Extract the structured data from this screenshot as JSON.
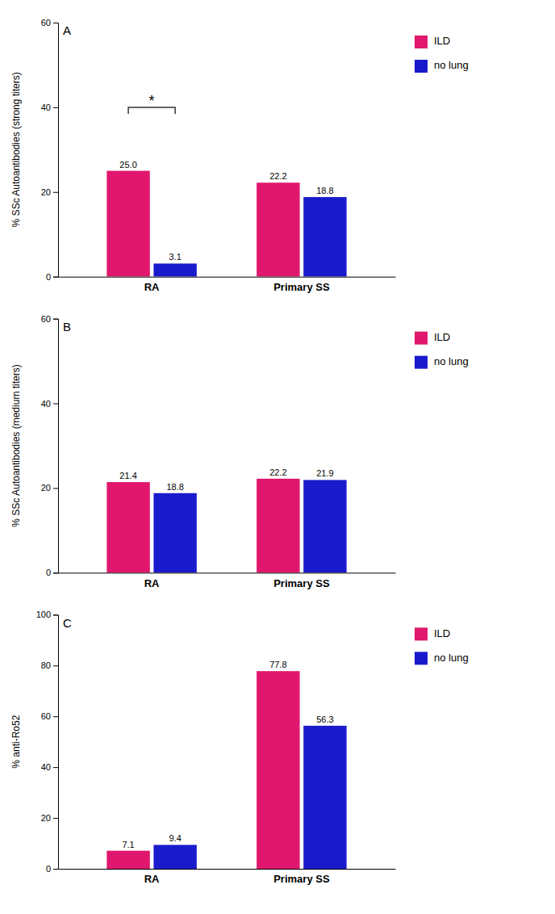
{
  "chart_data": [
    {
      "type": "bar",
      "title": "A",
      "ylabel": "% SSc Autoantibodies (strong titers)",
      "categories": [
        "RA",
        "Primary SS"
      ],
      "series": [
        {
          "name": "ILD",
          "color": "#E0176C",
          "values": [
            25.0,
            22.2
          ],
          "value_labels": [
            "25.0",
            "22.2"
          ]
        },
        {
          "name": "no lung",
          "color": "#1A1ACD",
          "values": [
            3.1,
            18.8
          ],
          "value_labels": [
            "3.1",
            "18.8"
          ]
        }
      ],
      "ylim": [
        0,
        60
      ],
      "yticks": [
        0,
        20,
        40,
        60
      ],
      "data_labels": true,
      "grid": false,
      "legend": "right",
      "annotations": [
        {
          "text": "*",
          "category": "RA",
          "y": 40
        }
      ]
    },
    {
      "type": "bar",
      "title": "B",
      "ylabel": "% SSc Autoantibodies (medium titers)",
      "categories": [
        "RA",
        "Primary SS"
      ],
      "series": [
        {
          "name": "ILD",
          "color": "#E0176C",
          "values": [
            21.4,
            22.2
          ],
          "value_labels": [
            "21.4",
            "22.2"
          ]
        },
        {
          "name": "no lung",
          "color": "#1A1ACD",
          "values": [
            18.8,
            21.9
          ],
          "value_labels": [
            "18.8",
            "21.9"
          ]
        }
      ],
      "ylim": [
        0,
        60
      ],
      "yticks": [
        0,
        20,
        40,
        60
      ],
      "data_labels": true,
      "grid": false,
      "legend": "right"
    },
    {
      "type": "bar",
      "title": "C",
      "ylabel": "% anti-Ro52",
      "categories": [
        "RA",
        "Primary SS"
      ],
      "series": [
        {
          "name": "ILD",
          "color": "#E0176C",
          "values": [
            7.1,
            77.8
          ],
          "value_labels": [
            "7.1",
            "77.8"
          ]
        },
        {
          "name": "no lung",
          "color": "#1A1ACD",
          "values": [
            9.4,
            56.3
          ],
          "value_labels": [
            "9.4",
            "56.3"
          ]
        }
      ],
      "ylim": [
        0,
        100
      ],
      "yticks": [
        0,
        20,
        40,
        60,
        80,
        100
      ],
      "data_labels": true,
      "grid": false,
      "legend": "right"
    }
  ]
}
